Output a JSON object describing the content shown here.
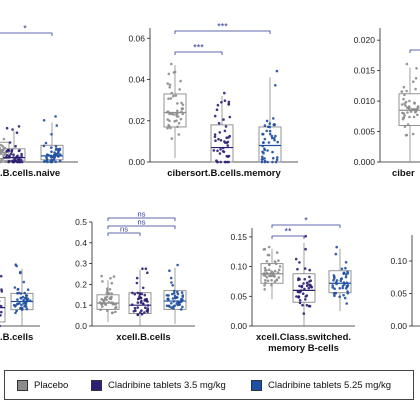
{
  "colors": {
    "placebo": "#8c8c8c",
    "clad35": "#2b1f73",
    "clad525": "#1f4fa0",
    "box": "#888888",
    "axis": "#222222",
    "sig": "#2b3a8f"
  },
  "legend": {
    "items": [
      {
        "label": "Placebo",
        "color": "#8c8c8c"
      },
      {
        "label": "Cladribine tablets 3.5 mg/kg",
        "color": "#2b1f73"
      },
      {
        "label": "Cladribine tablets 5.25 mg/kg",
        "color": "#1f4fa0"
      }
    ]
  },
  "chart_data": [
    {
      "type": "box",
      "title_lines": [
        ".B.cells.naive"
      ],
      "ylim": [
        0,
        0.3
      ],
      "yticks": [],
      "groups": [
        {
          "series": "Placebo",
          "q1": 0.008,
          "median": 0.022,
          "q3": 0.045,
          "whisker_low": 0.0,
          "whisker_high": 0.1
        },
        {
          "series": "Cladribine tablets 3.5 mg/kg",
          "q1": 0.004,
          "median": 0.01,
          "q3": 0.03,
          "whisker_low": 0.0,
          "whisker_high": 0.07
        },
        {
          "series": "Cladribine tablets 5.25 mg/kg",
          "q1": 0.005,
          "median": 0.014,
          "q3": 0.038,
          "whisker_low": 0.0,
          "whisker_high": 0.09
        }
      ],
      "brackets": [
        {
          "from": 0,
          "to": 2,
          "label": "*"
        }
      ]
    },
    {
      "type": "box",
      "title_lines": [
        "cibersort.B.cells.memory"
      ],
      "ylim": [
        0,
        0.065
      ],
      "yticks": [
        0.0,
        0.02,
        0.04,
        0.06
      ],
      "ytick_labels": [
        "0.00",
        "0.02",
        "0.04",
        "0.06"
      ],
      "groups": [
        {
          "series": "Placebo",
          "q1": 0.017,
          "median": 0.024,
          "q3": 0.033,
          "whisker_low": 0.002,
          "whisker_high": 0.047
        },
        {
          "series": "Cladribine tablets 3.5 mg/kg",
          "q1": 0.0,
          "median": 0.007,
          "q3": 0.018,
          "whisker_low": 0.0,
          "whisker_high": 0.032
        },
        {
          "series": "Cladribine tablets 5.25 mg/kg",
          "q1": 0.0,
          "median": 0.008,
          "q3": 0.017,
          "whisker_low": 0.0,
          "whisker_high": 0.041
        }
      ],
      "brackets": [
        {
          "from": 0,
          "to": 1,
          "label": "***",
          "level": 0
        },
        {
          "from": 0,
          "to": 2,
          "label": "***",
          "level": 1
        }
      ]
    },
    {
      "type": "box",
      "title_lines": [
        "ciber"
      ],
      "ylim": [
        0,
        0.022
      ],
      "yticks": [
        0.0,
        0.005,
        0.01,
        0.015,
        0.02
      ],
      "ytick_labels": [
        "0.000",
        "0.005",
        "0.010",
        "0.015",
        "0.020"
      ],
      "groups": [
        {
          "series": "Placebo",
          "q1": 0.006,
          "median": 0.0085,
          "q3": 0.0112,
          "whisker_low": 0.0,
          "whisker_high": 0.0155
        }
      ],
      "brackets": [
        {
          "from": 0,
          "to": 1,
          "label": "",
          "level": 1
        }
      ]
    },
    {
      "type": "box",
      "title_lines": [
        ".B.cells"
      ],
      "ylim": [
        0,
        0.5
      ],
      "yticks": [],
      "groups": [
        {
          "series": "Cladribine tablets 3.5 mg/kg",
          "q1": 0.02,
          "median": 0.09,
          "q3": 0.14,
          "whisker_low": 0.0,
          "whisker_high": 0.25
        },
        {
          "series": "Cladribine tablets 5.25 mg/kg",
          "q1": 0.08,
          "median": 0.12,
          "q3": 0.16,
          "whisker_low": 0.0,
          "whisker_high": 0.28
        }
      ],
      "brackets": []
    },
    {
      "type": "box",
      "title_lines": [
        "xcell.B.cells"
      ],
      "ylim": [
        0,
        0.5
      ],
      "yticks": [
        0.0,
        0.1,
        0.2,
        0.3,
        0.4,
        0.5
      ],
      "ytick_labels": [
        "0.0",
        "0.1",
        "0.2",
        "0.3",
        "0.4",
        "0.5"
      ],
      "groups": [
        {
          "series": "Placebo",
          "q1": 0.08,
          "median": 0.11,
          "q3": 0.15,
          "whisker_low": 0.02,
          "whisker_high": 0.22
        },
        {
          "series": "Cladribine tablets 3.5 mg/kg",
          "q1": 0.06,
          "median": 0.1,
          "q3": 0.16,
          "whisker_low": 0.0,
          "whisker_high": 0.27
        },
        {
          "series": "Cladribine tablets 5.25 mg/kg",
          "q1": 0.08,
          "median": 0.12,
          "q3": 0.17,
          "whisker_low": 0.01,
          "whisker_high": 0.28
        }
      ],
      "brackets": [
        {
          "from": 0,
          "to": 1,
          "label": "ns",
          "level": 0
        },
        {
          "from": 0,
          "to": 2,
          "label": "ns",
          "level": 1
        },
        {
          "from": 0,
          "to": 2,
          "label": "ns",
          "level": 2
        }
      ]
    },
    {
      "type": "box",
      "title_lines": [
        "xcell.Class.switched.",
        "memory B-cells"
      ],
      "ylim": [
        0,
        0.165
      ],
      "yticks": [
        0.0,
        0.05,
        0.1,
        0.15
      ],
      "ytick_labels": [
        "0.00",
        "0.05",
        "0.10",
        "0.15"
      ],
      "groups": [
        {
          "series": "Placebo",
          "q1": 0.072,
          "median": 0.088,
          "q3": 0.105,
          "whisker_low": 0.045,
          "whisker_high": 0.13
        },
        {
          "series": "Cladribine tablets 3.5 mg/kg",
          "q1": 0.04,
          "median": 0.06,
          "q3": 0.088,
          "whisker_low": 0.0,
          "whisker_high": 0.14
        },
        {
          "series": "Cladribine tablets 5.25 mg/kg",
          "q1": 0.056,
          "median": 0.072,
          "q3": 0.093,
          "whisker_low": 0.025,
          "whisker_high": 0.13
        }
      ],
      "brackets": [
        {
          "from": 0,
          "to": 1,
          "label": "**",
          "level": 0
        },
        {
          "from": 0,
          "to": 2,
          "label": "*",
          "level": 1
        }
      ]
    },
    {
      "type": "box",
      "title_lines": [],
      "ylim": [
        0,
        0.14
      ],
      "yticks": [
        0.0,
        0.05,
        0.1
      ],
      "ytick_labels": [
        "0.00",
        "0.05",
        "0.10"
      ],
      "groups": [],
      "brackets": []
    }
  ]
}
